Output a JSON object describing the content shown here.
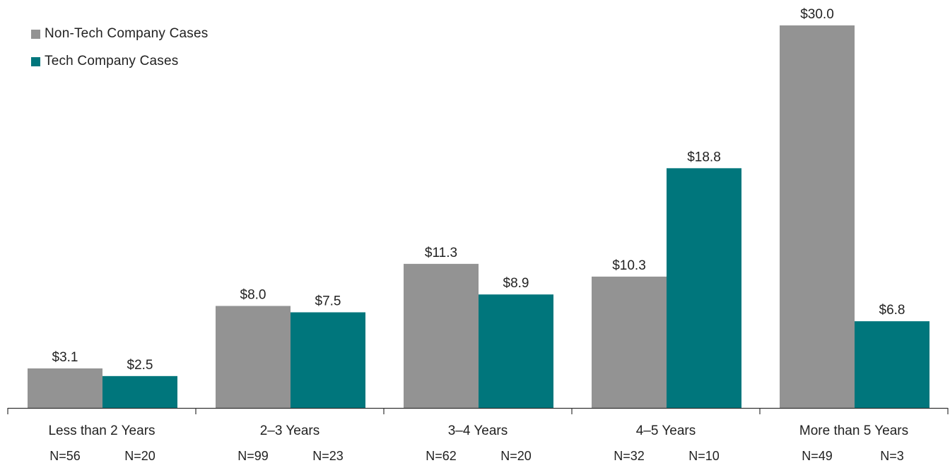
{
  "chart_data": {
    "type": "bar",
    "categories": [
      "Less than 2 Years",
      "2–3 Years",
      "3–4 Years",
      "4–5 Years",
      "More than 5 Years"
    ],
    "series": [
      {
        "name": "Non-Tech Company Cases",
        "values": [
          3.1,
          8.0,
          11.3,
          10.3,
          30.0
        ],
        "labels": [
          "$3.1",
          "$8.0",
          "$11.3",
          "$10.3",
          "$30.0"
        ],
        "n_labels": [
          "N=56",
          "N=99",
          "N=62",
          "N=32",
          "N=49"
        ],
        "color": "#939393"
      },
      {
        "name": "Tech Company Cases",
        "values": [
          2.5,
          7.5,
          8.9,
          18.8,
          6.8
        ],
        "labels": [
          "$2.5",
          "$7.5",
          "$8.9",
          "$18.8",
          "$6.8"
        ],
        "n_labels": [
          "N=20",
          "N=23",
          "N=20",
          "N=10",
          "N=3"
        ],
        "color": "#00767C"
      }
    ],
    "ylim": [
      0,
      30
    ],
    "grid": false,
    "legend_position": "top-left",
    "title": "",
    "xlabel": "",
    "ylabel": ""
  }
}
